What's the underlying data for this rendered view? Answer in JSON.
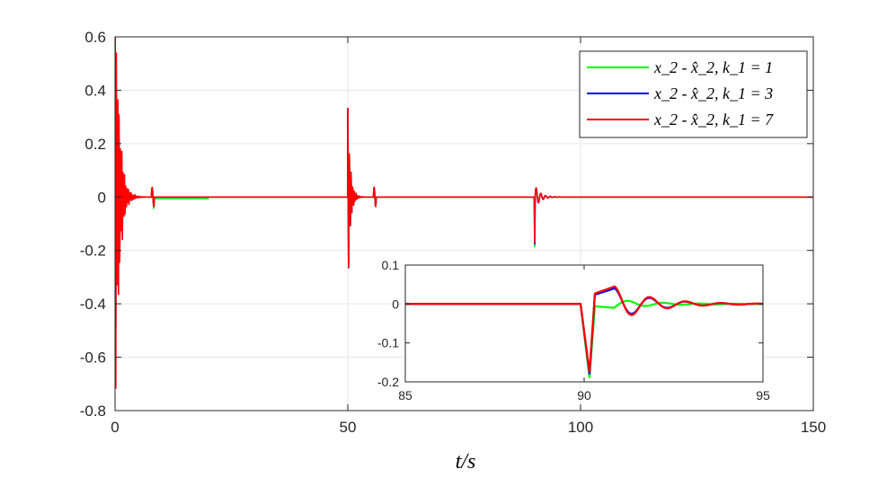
{
  "chart_data": {
    "type": "line",
    "xlabel": "t/s",
    "xlim": [
      0,
      150
    ],
    "ylim": [
      -0.8,
      0.6
    ],
    "xticks": [
      "0",
      "50",
      "100",
      "150"
    ],
    "yticks": [
      "0.6",
      "0.4",
      "0.2",
      "0",
      "-0.2",
      "-0.4",
      "-0.6",
      "-0.8"
    ],
    "grid": true,
    "legend_position": "top-right",
    "series": [
      {
        "name": "x_2 - x̂_2, k_1 = 1",
        "color": "#00ff00"
      },
      {
        "name": "x_2 - x̂_2, k_1 = 3",
        "color": "#0000ff"
      },
      {
        "name": "x_2 - x̂_2, k_1 = 7",
        "color": "#ff0000"
      }
    ],
    "disturbance_events": [
      {
        "t": 0,
        "peak": 0.5,
        "trough": -0.8
      },
      {
        "t": 50,
        "peak": 0.33,
        "trough": -0.22
      },
      {
        "t": 90,
        "peak": 0.04,
        "trough": -0.18
      }
    ],
    "inset": {
      "xlim": [
        85,
        95
      ],
      "ylim": [
        -0.2,
        0.1
      ],
      "xticks": [
        "85",
        "90",
        "95"
      ],
      "yticks": [
        "0.1",
        "0",
        "-0.1",
        "-0.2"
      ],
      "dip": {
        "t": 90.15,
        "k1_1": -0.19,
        "k1_3": -0.18,
        "k1_7": -0.175
      },
      "peak_after": {
        "t": 90.8,
        "k1_1": -0.01,
        "k1_3": 0.04,
        "k1_7": 0.045
      }
    }
  }
}
